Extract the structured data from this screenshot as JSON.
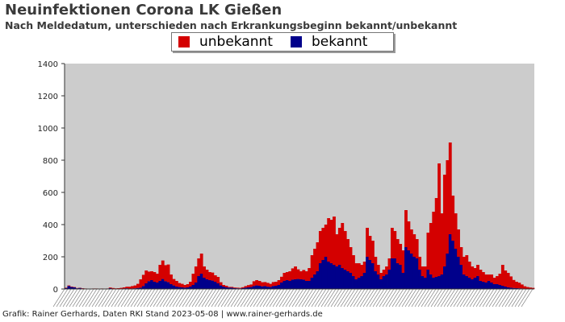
{
  "header": {
    "title": "Neuinfektionen Corona LK Gießen",
    "subtitle": "Nach Meldedatum, unterschieden nach Erkrankungsbeginn bekannt/unbekannt"
  },
  "footer": {
    "text": "Grafik: Rainer Gerhards, Daten RKI Stand 2023-05-08 | www.rainer-gerhards.de"
  },
  "colors": {
    "unbekannt": "#d40000",
    "bekannt": "#00008b",
    "plot_background": "#cccccc",
    "axis": "#333333"
  },
  "chart_data": {
    "type": "bar",
    "stacked": true,
    "title": "Neuinfektionen Corona LK Gießen",
    "subtitle": "Nach Meldedatum, unterschieden nach Erkrankungsbeginn bekannt/unbekannt",
    "xlabel": "",
    "ylabel": "",
    "ylim": [
      0,
      1400
    ],
    "yticks": [
      0,
      200,
      400,
      600,
      800,
      1000,
      1200,
      1400
    ],
    "legend": {
      "placement": "top-center",
      "entries": [
        "unbekannt",
        "bekannt"
      ]
    },
    "grid": false,
    "x_tick_labels_legible": false,
    "series": [
      {
        "name": "bekannt",
        "color": "#00008b",
        "values": [
          5,
          18,
          12,
          10,
          4,
          6,
          3,
          2,
          1,
          1,
          2,
          1,
          0,
          1,
          0,
          0,
          5,
          1,
          0,
          2,
          2,
          3,
          4,
          2,
          3,
          4,
          6,
          8,
          18,
          35,
          48,
          55,
          45,
          40,
          50,
          62,
          48,
          42,
          30,
          22,
          15,
          12,
          10,
          8,
          10,
          15,
          25,
          40,
          80,
          95,
          70,
          60,
          55,
          52,
          45,
          35,
          22,
          15,
          10,
          8,
          8,
          5,
          4,
          3,
          5,
          8,
          10,
          12,
          18,
          22,
          20,
          16,
          18,
          14,
          12,
          18,
          20,
          25,
          40,
          50,
          55,
          50,
          58,
          60,
          62,
          60,
          58,
          50,
          50,
          70,
          90,
          110,
          160,
          180,
          200,
          170,
          160,
          150,
          140,
          150,
          130,
          120,
          110,
          100,
          80,
          60,
          70,
          80,
          100,
          200,
          180,
          160,
          110,
          90,
          60,
          80,
          90,
          120,
          190,
          190,
          160,
          150,
          100,
          260,
          240,
          220,
          200,
          190,
          120,
          80,
          70,
          120,
          90,
          70,
          75,
          80,
          90,
          140,
          220,
          340,
          300,
          250,
          200,
          150,
          90,
          80,
          70,
          60,
          70,
          80,
          50,
          45,
          40,
          50,
          40,
          30,
          30,
          25,
          20,
          15,
          10,
          8,
          6,
          5,
          4,
          3,
          2,
          2,
          1,
          1
        ]
      },
      {
        "name": "unbekannt",
        "color": "#d40000",
        "values": [
          3,
          4,
          3,
          2,
          2,
          2,
          2,
          1,
          1,
          1,
          1,
          2,
          1,
          2,
          2,
          3,
          4,
          5,
          4,
          3,
          5,
          7,
          10,
          12,
          15,
          18,
          26,
          52,
          70,
          80,
          60,
          55,
          60,
          55,
          100,
          115,
          100,
          110,
          60,
          40,
          35,
          25,
          22,
          17,
          20,
          30,
          70,
          100,
          110,
          125,
          70,
          60,
          50,
          50,
          40,
          40,
          20,
          10,
          10,
          5,
          5,
          4,
          4,
          4,
          6,
          10,
          14,
          16,
          30,
          33,
          30,
          26,
          25,
          24,
          20,
          25,
          25,
          30,
          36,
          50,
          50,
          60,
          70,
          80,
          60,
          50,
          60,
          60,
          80,
          140,
          160,
          180,
          200,
          200,
          200,
          270,
          270,
          300,
          200,
          230,
          280,
          240,
          200,
          160,
          130,
          100,
          90,
          70,
          70,
          180,
          150,
          140,
          90,
          60,
          40,
          40,
          50,
          70,
          190,
          170,
          150,
          130,
          140,
          230,
          180,
          150,
          140,
          120,
          80,
          60,
          70,
          230,
          320,
          410,
          490,
          700,
          380,
          570,
          580,
          570,
          280,
          220,
          170,
          110,
          110,
          130,
          100,
          80,
          60,
          70,
          70,
          60,
          50,
          40,
          50,
          40,
          50,
          70,
          130,
          100,
          90,
          70,
          50,
          40,
          35,
          25,
          15,
          10,
          8,
          6
        ]
      }
    ]
  }
}
